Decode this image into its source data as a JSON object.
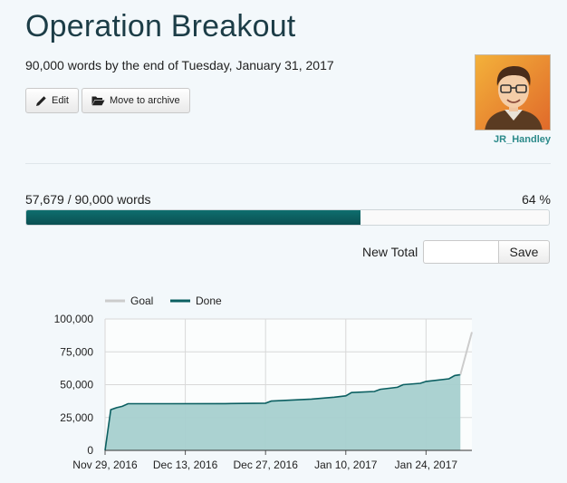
{
  "project": {
    "title": "Operation Breakout",
    "goal_text": "90,000 words by the end of Tuesday, January 31, 2017"
  },
  "toolbar": {
    "edit_label": "Edit",
    "archive_label": "Move to archive"
  },
  "user": {
    "username": "JR_Handley"
  },
  "progress": {
    "label": "57,679 / 90,000 words",
    "percent_label": "64 %",
    "fraction": 0.64
  },
  "new_total": {
    "label": "New Total",
    "value": "",
    "save_label": "Save"
  },
  "colors": {
    "accent": "#0b5f61",
    "done_fill": "#a7d0cf",
    "goal_line": "#cccccc"
  },
  "chart_data": {
    "type": "area",
    "legend": [
      "Goal",
      "Done"
    ],
    "legend_position": "top-left",
    "grid": true,
    "ylim": [
      0,
      100000
    ],
    "y_ticks": [
      0,
      25000,
      50000,
      75000,
      100000
    ],
    "y_tick_labels": [
      "0",
      "25,000",
      "50,000",
      "75,000",
      "100,000"
    ],
    "x_range": [
      "2016-11-29",
      "2017-02-01"
    ],
    "x_ticks": [
      "2016-11-29",
      "2016-12-13",
      "2016-12-27",
      "2017-01-10",
      "2017-01-24"
    ],
    "x_tick_labels": [
      "Nov 29, 2016",
      "Dec 13, 2016",
      "Dec 27, 2016",
      "Jan 10, 2017",
      "Jan 24, 2017"
    ],
    "series": [
      {
        "name": "Done",
        "points": [
          [
            "2016-11-29",
            0
          ],
          [
            "2016-11-30",
            31000
          ],
          [
            "2016-12-01",
            32500
          ],
          [
            "2016-12-02",
            33500
          ],
          [
            "2016-12-03",
            35500
          ],
          [
            "2016-12-10",
            35500
          ],
          [
            "2016-12-20",
            35600
          ],
          [
            "2016-12-27",
            35900
          ],
          [
            "2016-12-28",
            37500
          ],
          [
            "2017-01-04",
            39000
          ],
          [
            "2017-01-08",
            40500
          ],
          [
            "2017-01-10",
            41500
          ],
          [
            "2017-01-11",
            44000
          ],
          [
            "2017-01-15",
            44800
          ],
          [
            "2017-01-16",
            46500
          ],
          [
            "2017-01-19",
            48000
          ],
          [
            "2017-01-20",
            50000
          ],
          [
            "2017-01-23",
            51000
          ],
          [
            "2017-01-24",
            52500
          ],
          [
            "2017-01-28",
            54500
          ],
          [
            "2017-01-29",
            57000
          ],
          [
            "2017-01-30",
            57679
          ]
        ]
      },
      {
        "name": "Goal",
        "points": [
          [
            "2017-01-30",
            57679
          ],
          [
            "2017-02-01",
            90000
          ]
        ]
      }
    ]
  }
}
